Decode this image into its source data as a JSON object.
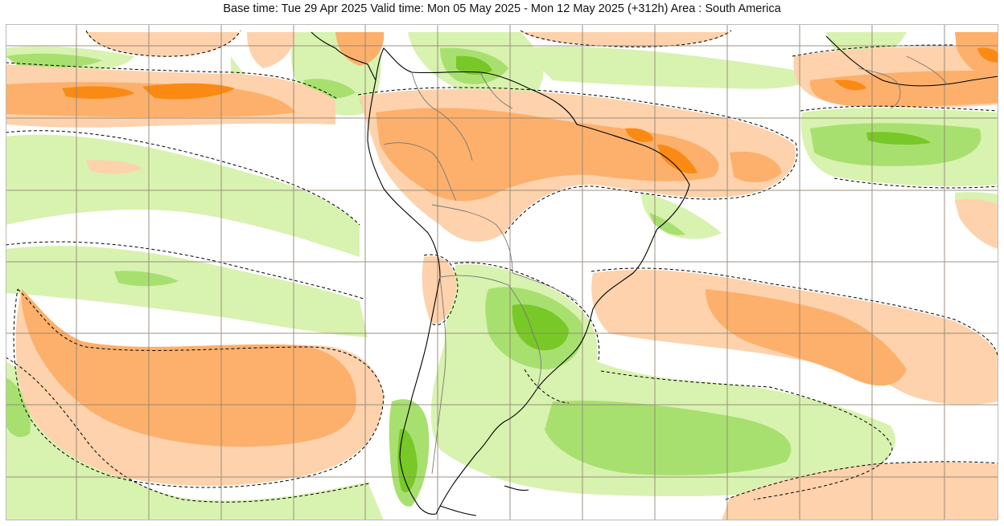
{
  "title": "Base time: Tue 29 Apr 2025 Valid time: Mon 05 May 2025 - Mon 12 May 2025 (+312h) Area : South America",
  "colors": {
    "wet_light": "#d8f2b0",
    "wet_medium": "#a8e070",
    "wet_strong": "#78c828",
    "dry_light": "#fdd2ac",
    "dry_medium": "#fcb06c",
    "dry_strong": "#fa8a14",
    "neutral": "#ffffff",
    "coastline": "#000000",
    "borders": "#777777",
    "graticule": "#8c8070"
  },
  "icons": {
    "coastline": "coastline-outline",
    "contour": "dashed-contour-line"
  }
}
